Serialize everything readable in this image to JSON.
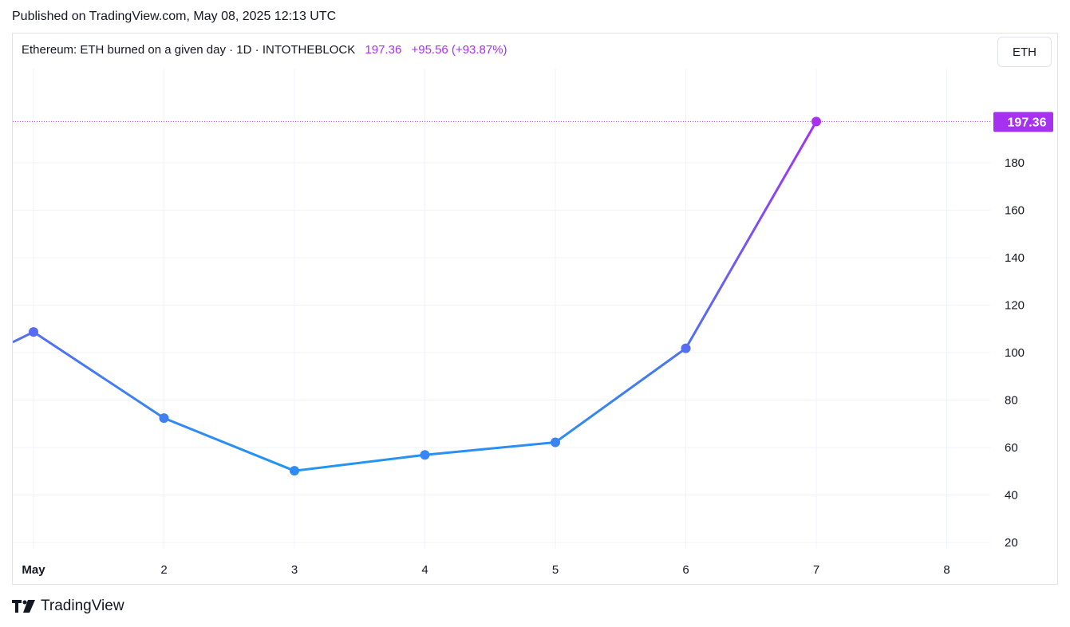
{
  "header": {
    "published": "Published on TradingView.com, May 08, 2025 12:13 UTC"
  },
  "legend": {
    "name": "Ethereum: ETH burned on a given day · 1D · INTOTHEBLOCK",
    "last_value": "197.36",
    "change": "+95.56 (+93.87%)"
  },
  "scale_button": {
    "label": "ETH"
  },
  "footer": {
    "brand": "TradingView"
  },
  "colors": {
    "line_start": "#2196f3",
    "line_end": "#a631f0",
    "grid": "#f0f3fa",
    "label_bg": "#a631f0"
  },
  "chart_data": {
    "type": "line",
    "x_ticks": [
      "May",
      "2",
      "3",
      "4",
      "5",
      "6",
      "7",
      "8"
    ],
    "x": [
      0,
      1,
      2,
      3,
      4,
      5,
      6
    ],
    "values": [
      108.7,
      72.4,
      50.2,
      56.9,
      62.2,
      101.8,
      197.36
    ],
    "y_ticks": [
      20,
      40,
      60,
      80,
      100,
      120,
      140,
      160,
      180
    ],
    "ylim": [
      15,
      220
    ],
    "last_value_label": "197.36",
    "grid": true
  }
}
